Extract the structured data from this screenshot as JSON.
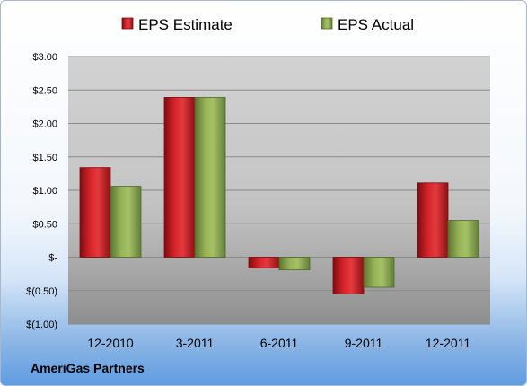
{
  "chart_data": {
    "type": "bar",
    "categories": [
      "12-2010",
      "3-2011",
      "6-2011",
      "9-2011",
      "12-2011"
    ],
    "series": [
      {
        "name": "EPS Estimate",
        "color": "#c0151b",
        "values": [
          1.34,
          2.39,
          -0.16,
          -0.55,
          1.11
        ]
      },
      {
        "name": "EPS Actual",
        "color": "#8aa84a",
        "values": [
          1.06,
          2.39,
          -0.19,
          -0.45,
          0.55
        ]
      }
    ],
    "ylim": [
      -1.0,
      3.0
    ],
    "ytick_values": [
      3.0,
      2.5,
      2.0,
      1.5,
      1.0,
      0.5,
      0,
      -0.5,
      -1.0
    ],
    "ytick_labels": [
      "$3.00",
      "$2.50",
      "$2.00",
      "$1.50",
      "$1.00",
      "$0.50",
      "$-",
      "$(0.50)",
      "$(1.00)"
    ],
    "grid": true,
    "legend": "top-center",
    "footer": "AmeriGas Partners"
  }
}
